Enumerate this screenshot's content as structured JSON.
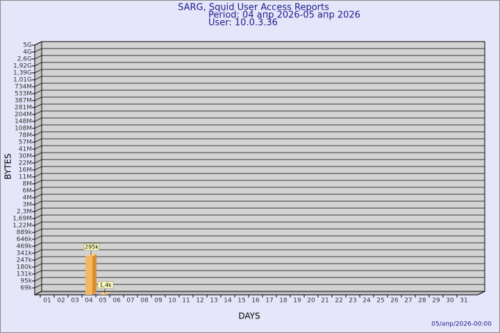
{
  "chart_data": {
    "type": "bar",
    "title": "SARG, Squid User Access Reports",
    "subtitle": "Period: 04 апр 2026-05 апр 2026",
    "user": "User: 10.0.3.36",
    "x_label": "DAYS",
    "y_label": "BYTES",
    "footer": "05/апр/2026-00:00",
    "categories": [
      "01",
      "02",
      "03",
      "04",
      "05",
      "06",
      "07",
      "08",
      "09",
      "10",
      "11",
      "12",
      "13",
      "14",
      "15",
      "16",
      "17",
      "18",
      "19",
      "20",
      "21",
      "22",
      "23",
      "24",
      "25",
      "26",
      "27",
      "28",
      "29",
      "30",
      "31"
    ],
    "values": [
      null,
      null,
      null,
      295000,
      1400,
      null,
      null,
      null,
      null,
      null,
      null,
      null,
      null,
      null,
      null,
      null,
      null,
      null,
      null,
      null,
      null,
      null,
      null,
      null,
      null,
      null,
      null,
      null,
      null,
      null,
      null
    ],
    "value_labels": [
      null,
      null,
      null,
      "295k",
      "1,4k",
      null,
      null,
      null,
      null,
      null,
      null,
      null,
      null,
      null,
      null,
      null,
      null,
      null,
      null,
      null,
      null,
      null,
      null,
      null,
      null,
      null,
      null,
      null,
      null,
      null,
      null
    ],
    "color": "#f5b862",
    "ylim": [
      0,
      5000000000
    ],
    "yticks": [
      {
        "value": 69000,
        "label": "69k"
      },
      {
        "value": 95000,
        "label": "95k"
      },
      {
        "value": 131000,
        "label": "131k"
      },
      {
        "value": 180000,
        "label": "180k"
      },
      {
        "value": 247000,
        "label": "247k"
      },
      {
        "value": 341000,
        "label": "341k"
      },
      {
        "value": 469000,
        "label": "469k"
      },
      {
        "value": 646000,
        "label": "646k"
      },
      {
        "value": 889000,
        "label": "889k"
      },
      {
        "value": 1220000,
        "label": "1,22M"
      },
      {
        "value": 1690000,
        "label": "1,69M"
      },
      {
        "value": 2300000,
        "label": "2,3M"
      },
      {
        "value": 3000000,
        "label": "3M"
      },
      {
        "value": 4000000,
        "label": "4M"
      },
      {
        "value": 6000000,
        "label": "6M"
      },
      {
        "value": 8000000,
        "label": "8M"
      },
      {
        "value": 11000000,
        "label": "11M"
      },
      {
        "value": 16000000,
        "label": "16M"
      },
      {
        "value": 22000000,
        "label": "22M"
      },
      {
        "value": 30000000,
        "label": "30M"
      },
      {
        "value": 41000000,
        "label": "41M"
      },
      {
        "value": 57000000,
        "label": "57M"
      },
      {
        "value": 78000000,
        "label": "78M"
      },
      {
        "value": 108000000,
        "label": "108M"
      },
      {
        "value": 148000000,
        "label": "148M"
      },
      {
        "value": 204000000,
        "label": "204M"
      },
      {
        "value": 281000000,
        "label": "281M"
      },
      {
        "value": 387000000,
        "label": "387M"
      },
      {
        "value": 533000000,
        "label": "533M"
      },
      {
        "value": 734000000,
        "label": "734M"
      },
      {
        "value": 1010000000,
        "label": "1,01G"
      },
      {
        "value": 1390000000,
        "label": "1,39G"
      },
      {
        "value": 1920000000,
        "label": "1,92G"
      },
      {
        "value": 2600000000,
        "label": "2,6G"
      },
      {
        "value": 4000000000,
        "label": "4G"
      },
      {
        "value": 5000000000,
        "label": "5G"
      }
    ],
    "grid": true
  }
}
